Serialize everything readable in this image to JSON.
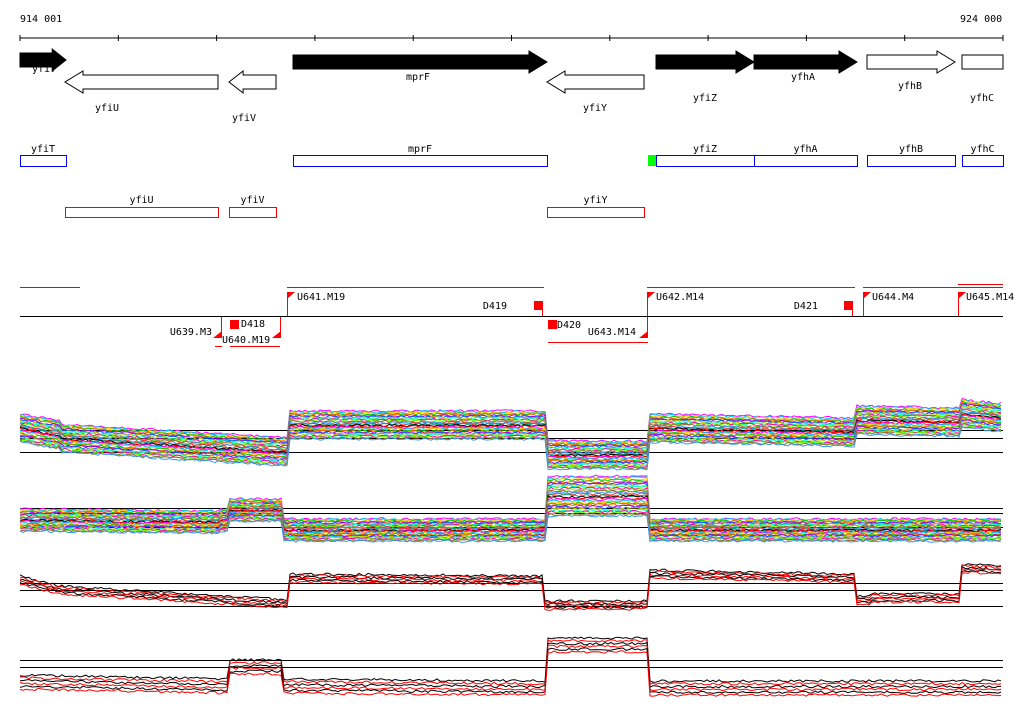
{
  "ruler": {
    "start_label": "914 001",
    "end_label": "924 000"
  },
  "genes_track": [
    {
      "name": "yfiT",
      "strand": "+",
      "filled": true
    },
    {
      "name": "yfiU",
      "strand": "-",
      "filled": false
    },
    {
      "name": "yfiV",
      "strand": "-",
      "filled": false
    },
    {
      "name": "mprF",
      "strand": "+",
      "filled": true
    },
    {
      "name": "yfiY",
      "strand": "-",
      "filled": false
    },
    {
      "name": "yfiZ",
      "strand": "+",
      "filled": true
    },
    {
      "name": "yfhA",
      "strand": "+",
      "filled": true
    },
    {
      "name": "yfhB",
      "strand": "+",
      "filled": false
    },
    {
      "name": "yfhC",
      "strand": "+",
      "filled": false
    }
  ],
  "forward_boxes": [
    "yfiT",
    "mprF",
    "yfiZ",
    "yfhA",
    "yfhB",
    "yfhC"
  ],
  "reverse_boxes": [
    "yfiU",
    "yfiV",
    "yfiY"
  ],
  "segments_upper": [
    "U641.M19",
    "D419",
    "U642.M14",
    "D421",
    "U644.M4",
    "U645.M14"
  ],
  "segments_lower": [
    "U639.M3",
    "D418",
    "U640.M19",
    "D420",
    "U643.M14"
  ],
  "colors": {
    "forward_box": "#0000ff",
    "reverse_box": "#ff0000",
    "marker": "#ff0000",
    "start_marker": "#00ff00"
  }
}
